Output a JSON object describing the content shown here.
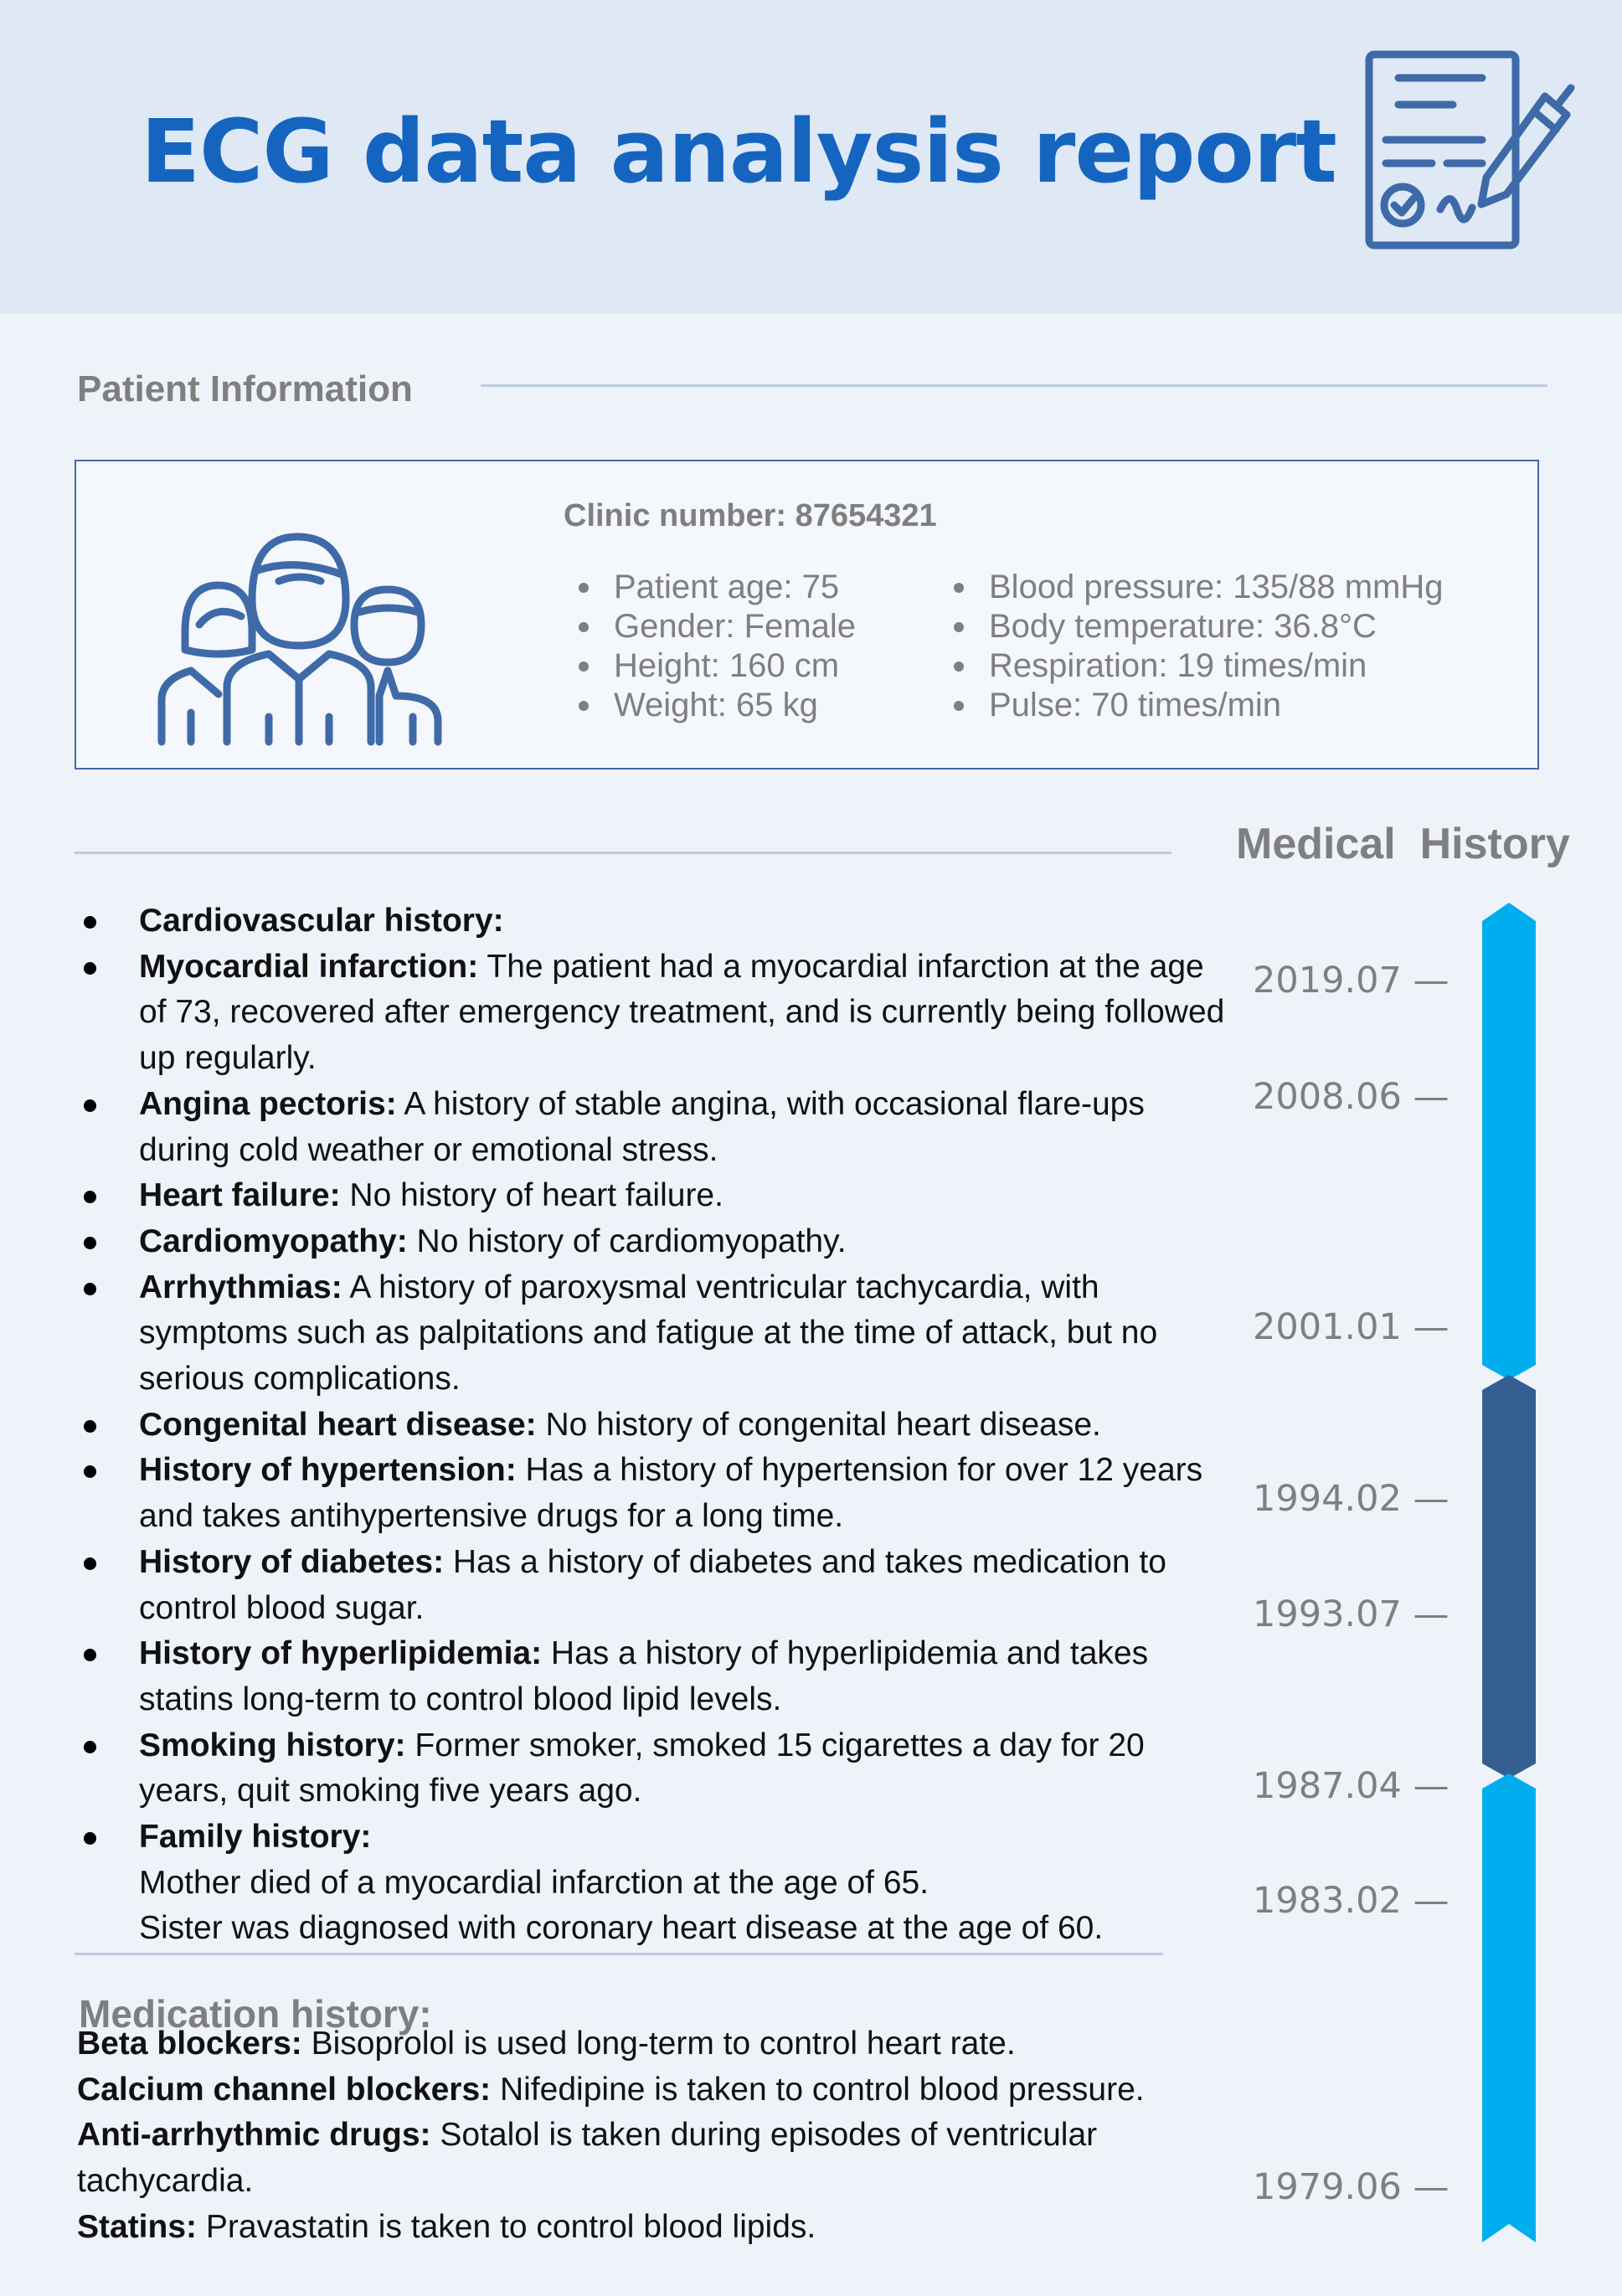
{
  "header": {
    "title": "ECG data analysis report"
  },
  "patient_info": {
    "section_title": "Patient Information",
    "clinic_number": "Clinic number: 87654321",
    "left_items": [
      "Patient   age: 75",
      "Gender: Female",
      "Height: 160 cm",
      "Weight: 65 kg"
    ],
    "right_items": [
      "Blood pressure: 135/88 mmHg",
      "Body temperature: 36.8°C",
      "Respiration: 19 times/min",
      "Pulse: 70 times/min"
    ]
  },
  "medical_history": {
    "section_title": "Medical  History",
    "items": [
      {
        "label": "Cardiovascular history:",
        "text": ""
      },
      {
        "label": "Myocardial infarction:",
        "text": " The patient had a myocardial infarction at the age of 73, recovered after emergency treatment, and is currently being followed up regularly."
      },
      {
        "label": "Angina pectoris:",
        "text": " A history of stable angina, with occasional flare-ups during cold weather or emotional stress."
      },
      {
        "label": "Heart failure:",
        "text": " No history of heart failure."
      },
      {
        "label": "Cardiomyopathy:",
        "text": " No history of cardiomyopathy."
      },
      {
        "label": "Arrhythmias:",
        "text": " A history of paroxysmal ventricular tachycardia, with symptoms such as palpitations and fatigue at the time of attack, but no serious complications."
      },
      {
        "label": "Congenital heart disease:",
        "text": " No history of congenital heart disease."
      },
      {
        "label": "History of hypertension:",
        "text": " Has a history of hypertension for over 12 years and takes antihypertensive drugs for a long time."
      },
      {
        "label": "History of diabetes:",
        "text": " Has a history of diabetes and takes medication to control blood sugar."
      },
      {
        "label": "History of hyperlipidemia:",
        "text": " Has a history of hyperlipidemia and takes statins long-term to control blood lipid levels."
      },
      {
        "label": "Smoking history:",
        "text": " Former smoker, smoked 15 cigarettes a day for 20 years, quit smoking five years ago."
      },
      {
        "label": "Family history:",
        "text": "",
        "extra": [
          "Mother died of a myocardial infarction at the age of 65.",
          "Sister was diagnosed with coronary heart disease at the age of 60."
        ]
      }
    ]
  },
  "medication_history": {
    "title": "Medication history:",
    "items": [
      {
        "label": "Beta blockers:",
        "text": " Bisoprolol is used long-term to control heart rate."
      },
      {
        "label": "Calcium channel blockers:",
        "text": " Nifedipine is taken to control blood pressure."
      },
      {
        "label": "Anti-arrhythmic drugs:",
        "text": " Sotalol is taken during episodes of ventricular tachycardia."
      },
      {
        "label": "Statins:",
        "text": " Pravastatin is taken to control blood lipids."
      }
    ]
  },
  "timeline": {
    "dates": [
      "2019.07 —",
      "2008.06 —",
      "2001.01 —",
      "1994.02 —",
      "1993.07 —",
      "1987.04 —",
      "1983.02 —",
      "1979.06 —"
    ],
    "colors": {
      "light": "#00aeef",
      "dark": "#355f91"
    }
  }
}
